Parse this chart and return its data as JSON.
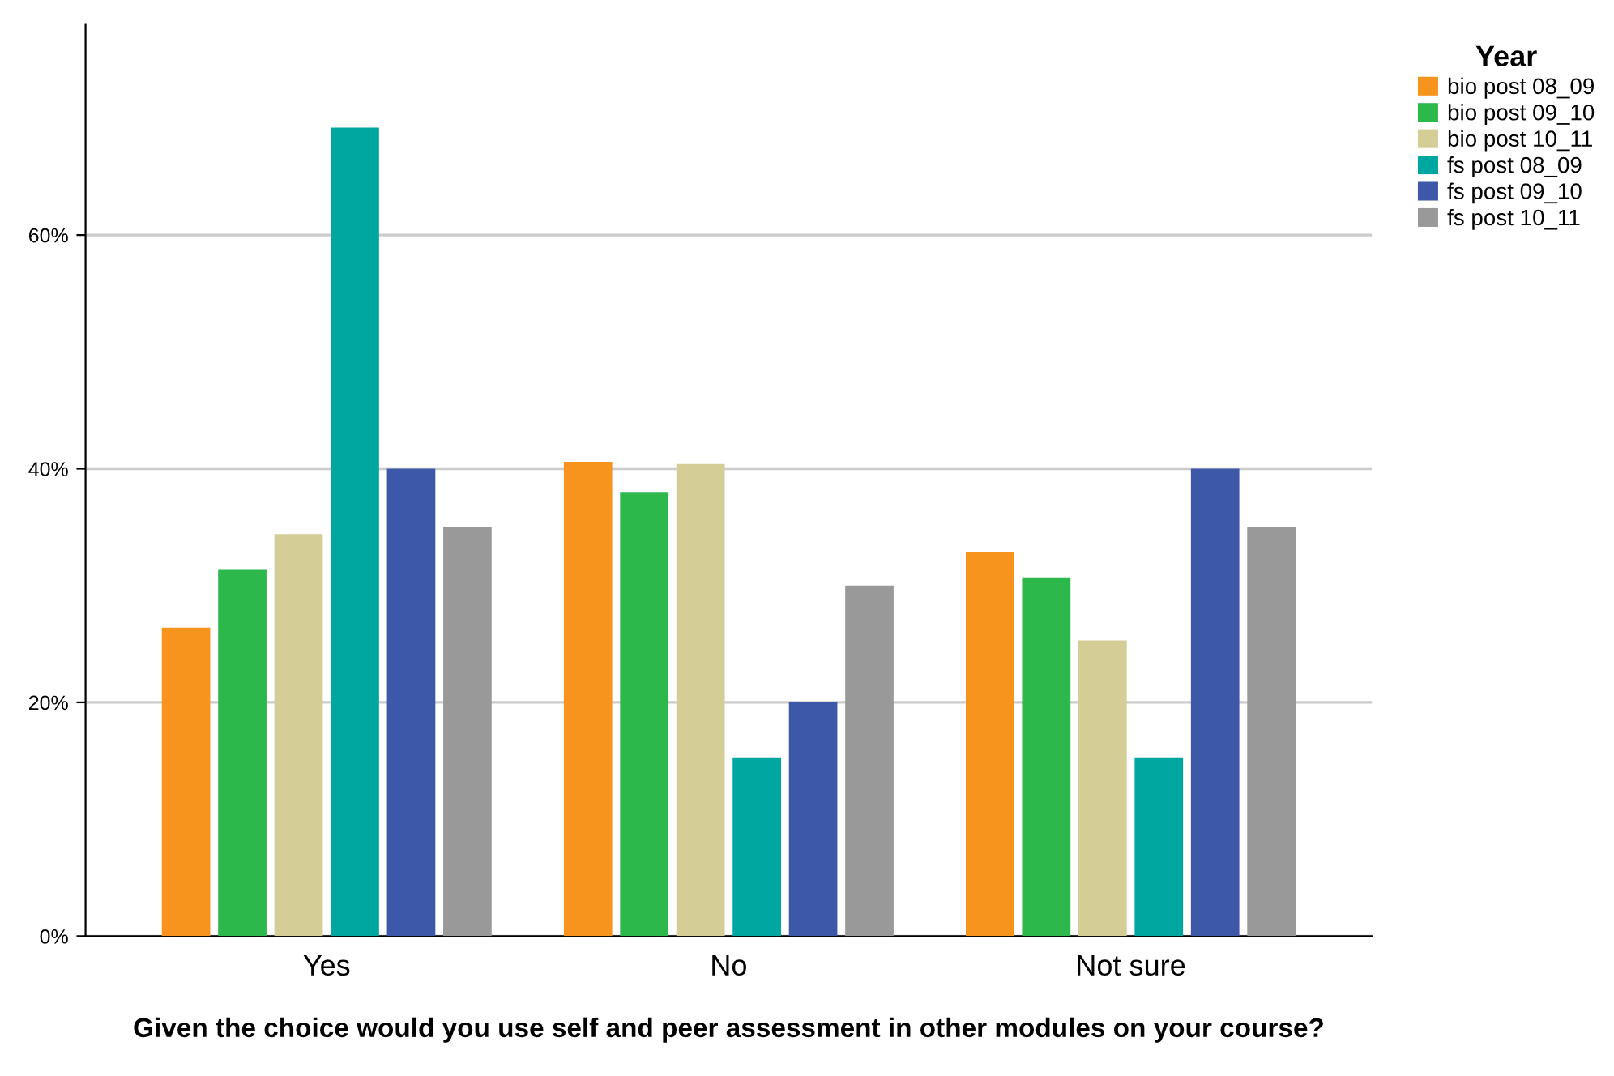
{
  "chart_data": {
    "type": "bar",
    "xlabel": "Given the choice would you use self and peer assessment in other modules on your course?",
    "legend_title": "Year",
    "categories": [
      "Yes",
      "No",
      "Not sure"
    ],
    "series": [
      {
        "name": "bio post 08_09",
        "color": "#f7941d",
        "values": [
          26.4,
          40.6,
          32.9
        ]
      },
      {
        "name": "bio post 09_10",
        "color": "#2db84b",
        "values": [
          31.4,
          38.0,
          30.7
        ]
      },
      {
        "name": "bio post 10_11",
        "color": "#d4cd96",
        "values": [
          34.4,
          40.4,
          25.3
        ]
      },
      {
        "name": "fs post 08_09",
        "color": "#00a6a0",
        "values": [
          69.2,
          15.3,
          15.3
        ]
      },
      {
        "name": "fs post 09_10",
        "color": "#3d58a8",
        "values": [
          40.0,
          20.0,
          40.0
        ]
      },
      {
        "name": "fs post 10_11",
        "color": "#999999",
        "values": [
          35.0,
          30.0,
          35.0
        ]
      }
    ],
    "ylim": [
      0,
      78
    ],
    "yticks": [
      {
        "value": 0,
        "label": "0%"
      },
      {
        "value": 20,
        "label": "20%"
      },
      {
        "value": 40,
        "label": "40%"
      },
      {
        "value": 60,
        "label": "60%"
      }
    ],
    "grid": "y",
    "legend": "top right"
  }
}
